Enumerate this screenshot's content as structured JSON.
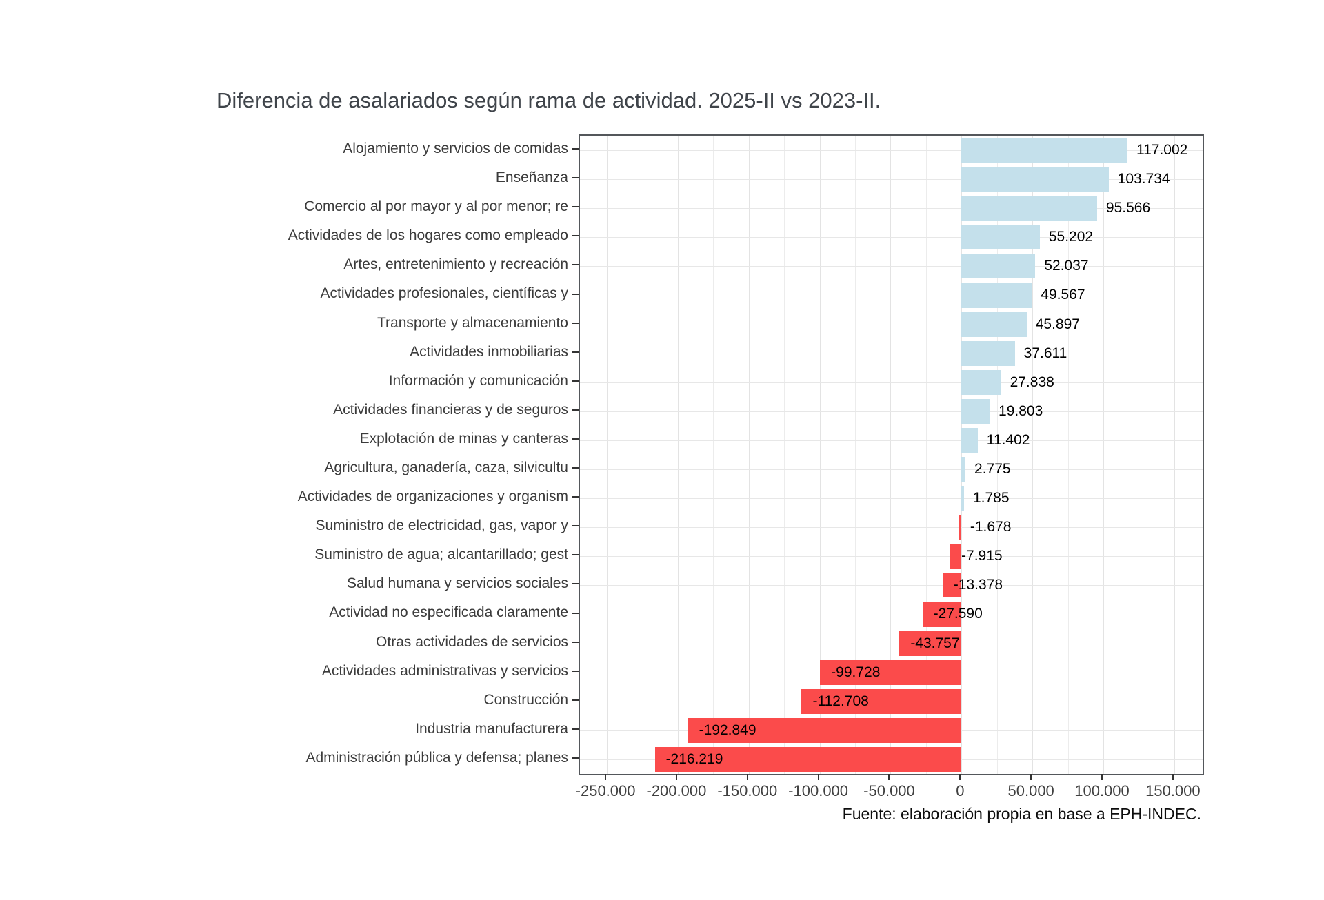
{
  "title": "Diferencia de asalariados según rama de actividad. 2025-II vs 2023-II.",
  "caption": "Fuente: elaboración propia en base a EPH-INDEC.",
  "chart_data": {
    "type": "bar",
    "orientation": "horizontal",
    "title": "Diferencia de asalariados según rama de actividad. 2025-II vs 2023-II.",
    "source_note": "Fuente: elaboración propia en base a EPH-INDEC.",
    "categories": [
      "Alojamiento y servicios de comidas",
      "Enseñanza",
      "Comercio al por mayor y al por menor; re",
      "Actividades de los hogares como empleado",
      "Artes, entretenimiento y recreación",
      "Actividades profesionales, científicas y",
      "Transporte y almacenamiento",
      "Actividades inmobiliarias",
      "Información y comunicación",
      "Actividades financieras y de seguros",
      "Explotación de minas y canteras",
      "Agricultura, ganadería, caza, silvicultu",
      "Actividades de organizaciones y organism",
      "Suministro de electricidad, gas, vapor y",
      "Suministro de agua; alcantarillado; gest",
      "Salud humana y servicios sociales",
      "Actividad no especificada claramente",
      "Otras actividades de servicios",
      "Actividades administrativas y servicios",
      "Construcción",
      "Industria manufacturera",
      "Administración pública y defensa; planes"
    ],
    "values": [
      117002,
      103734,
      95566,
      55202,
      52037,
      49567,
      45897,
      37611,
      27838,
      19803,
      11402,
      2775,
      1785,
      -1678,
      -7915,
      -13378,
      -27590,
      -43757,
      -99728,
      -112708,
      -192849,
      -216219
    ],
    "value_labels": [
      "117.002",
      "103.734",
      "95.566",
      "55.202",
      "52.037",
      "49.567",
      "45.897",
      "37.611",
      "27.838",
      "19.803",
      "11.402",
      "2.775",
      "1.785",
      "-1.678",
      "-7.915",
      "-13.378",
      "-27.590",
      "-43.757",
      "-99.728",
      "-112.708",
      "-192.849",
      "-216.219"
    ],
    "x_tick_values": [
      -250000,
      -200000,
      -150000,
      -100000,
      -50000,
      0,
      50000,
      100000,
      150000
    ],
    "x_tick_labels": [
      "-250.000",
      "-200.000",
      "-150.000",
      "-100.000",
      "-50.000",
      "0",
      "50.000",
      "100.000",
      "150.000"
    ],
    "x_minor_tick_values": [
      -225000,
      -175000,
      -125000,
      -75000,
      -25000,
      25000,
      75000,
      125000
    ],
    "xlim": [
      -269000,
      170000
    ],
    "grid": true,
    "legend": false,
    "colors": {
      "positive_bar": "#C4E0EB",
      "negative_bar": "#FB4B4B"
    }
  }
}
